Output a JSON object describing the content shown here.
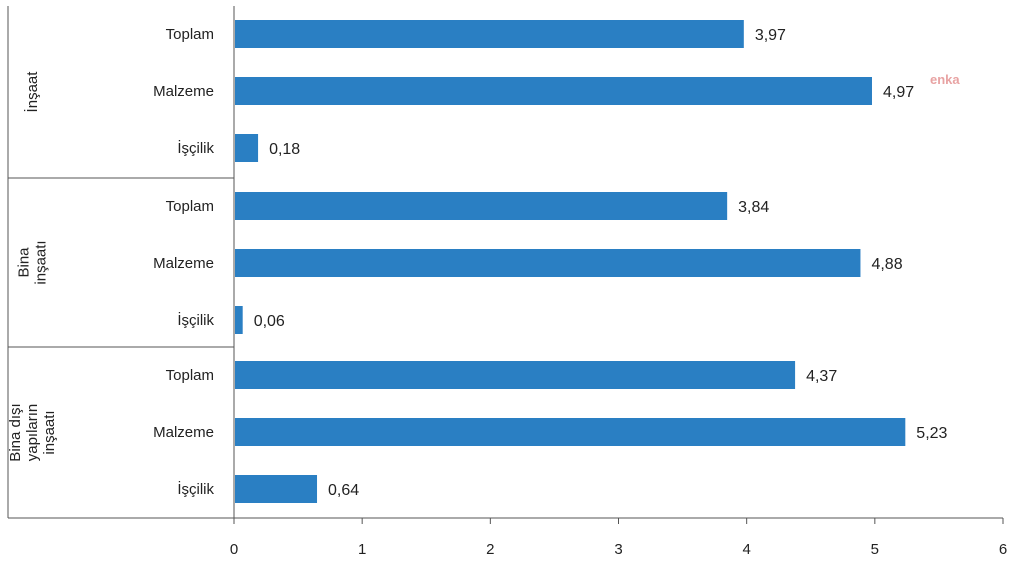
{
  "chart_data": {
    "type": "bar",
    "orientation": "horizontal",
    "title": "",
    "xlabel": "",
    "ylabel": "",
    "xlim": [
      0,
      6
    ],
    "x_ticks": [
      0,
      1,
      2,
      3,
      4,
      5,
      6
    ],
    "grid": false,
    "legend": "none",
    "bar_color": "#2a7fc3",
    "groups": [
      {
        "label_lines": [
          "İnşaat"
        ],
        "items": [
          {
            "label": "Toplam",
            "value": 3.97,
            "value_label": "3,97"
          },
          {
            "label": "Malzeme",
            "value": 4.97,
            "value_label": "4,97"
          },
          {
            "label": "İşçilik",
            "value": 0.18,
            "value_label": "0,18"
          }
        ]
      },
      {
        "label_lines": [
          "Bina",
          "inşaatı"
        ],
        "items": [
          {
            "label": "Toplam",
            "value": 3.84,
            "value_label": "3,84"
          },
          {
            "label": "Malzeme",
            "value": 4.88,
            "value_label": "4,88"
          },
          {
            "label": "İşçilik",
            "value": 0.06,
            "value_label": "0,06"
          }
        ]
      },
      {
        "label_lines": [
          "Bina dışı",
          "yapıların",
          "inşaatı"
        ],
        "items": [
          {
            "label": "Toplam",
            "value": 4.37,
            "value_label": "4,37"
          },
          {
            "label": "Malzeme",
            "value": 5.23,
            "value_label": "5,23"
          },
          {
            "label": "İşçilik",
            "value": 0.64,
            "value_label": "0,64"
          }
        ]
      }
    ]
  },
  "watermark": "enka"
}
